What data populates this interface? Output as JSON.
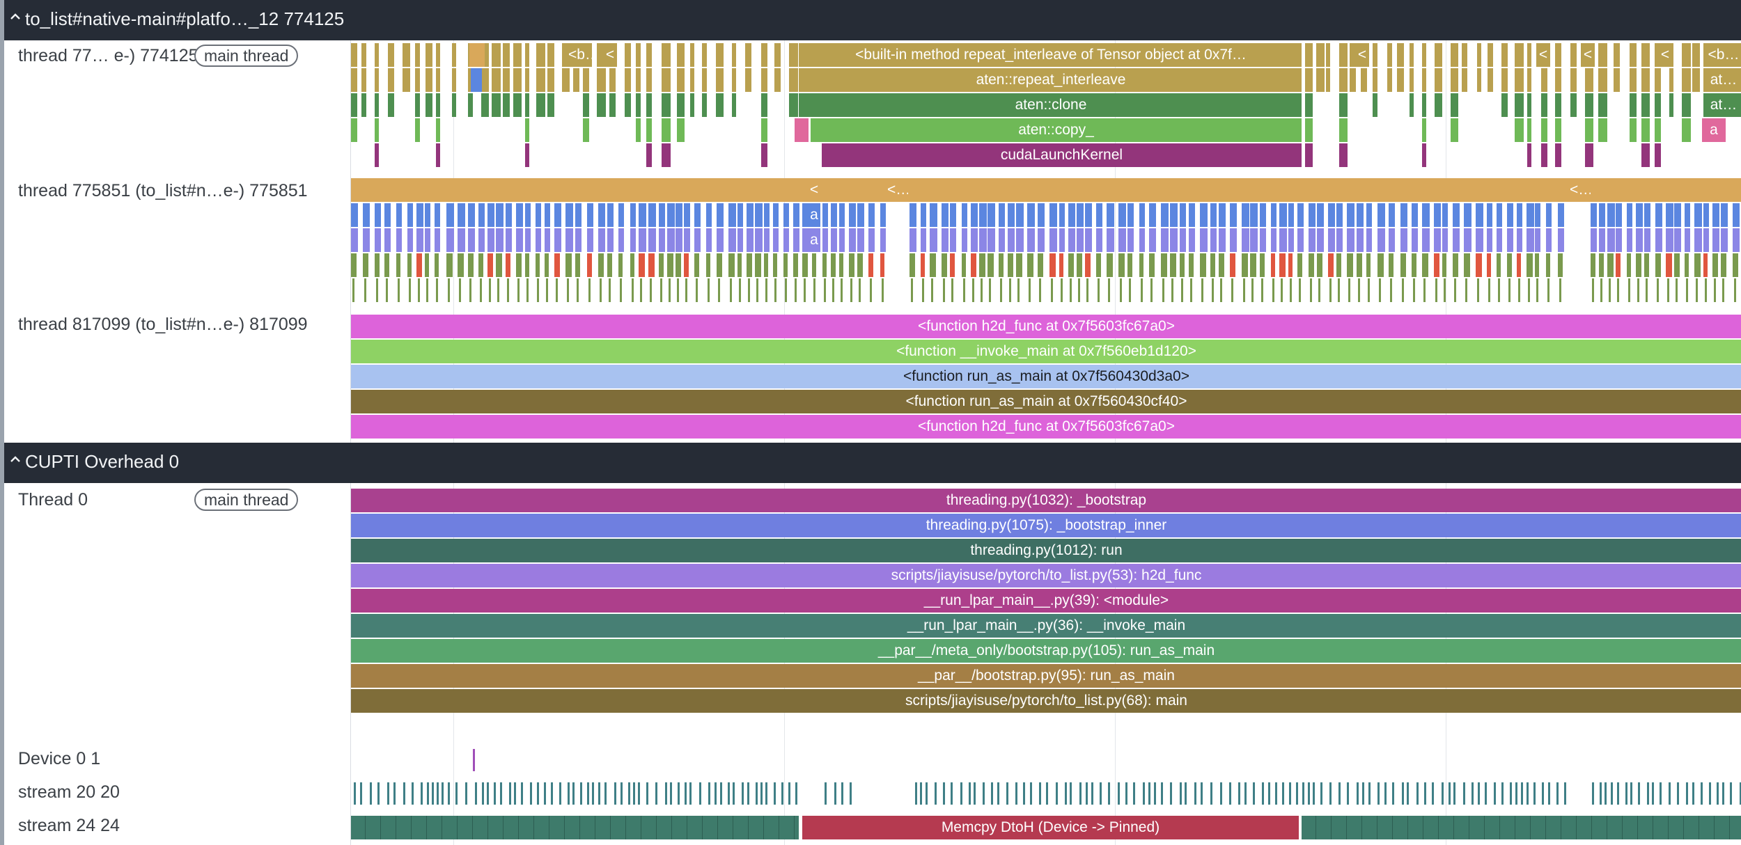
{
  "process_group": {
    "title": "to_list#native-main#platfo…_12 774125",
    "caret_icon": "chevron-up-icon"
  },
  "main_thread_track": {
    "label": "thread 77…  e-) 774125",
    "badge": "main thread",
    "slices": [
      {
        "text": "<b…",
        "color": "#b9a04f"
      },
      {
        "text": "<",
        "color": "#b9a04f"
      },
      {
        "text": "<built-in method repeat_interleave of Tensor object at 0x7f…",
        "color": "#b9a04f"
      },
      {
        "text": "aten::repeat_interleave",
        "color": "#b9a04f"
      },
      {
        "text": "aten::clone",
        "color": "#4e8f50"
      },
      {
        "text": "aten::copy_",
        "color": "#6fb957"
      },
      {
        "text": "cudaLaunchKernel",
        "color": "#93357b"
      },
      {
        "text": "<",
        "color": "#b9a04f"
      },
      {
        "text": "<",
        "color": "#b9a04f"
      },
      {
        "text": "<",
        "color": "#b9a04f"
      },
      {
        "text": "<",
        "color": "#b9a04f"
      },
      {
        "text": "<b…",
        "color": "#b9a04f"
      },
      {
        "text": "at…",
        "color": "#b9a04f"
      },
      {
        "text": "at…",
        "color": "#4e8f50"
      },
      {
        "text": "a",
        "color": "#e0689c"
      }
    ]
  },
  "thread_775851_track": {
    "label": "thread 775851 (to_list#n…e-) 775851",
    "slices": [
      {
        "text": "<",
        "color": "#d9a85a"
      },
      {
        "text": "<…",
        "color": "#d9a85a"
      },
      {
        "text": "<…",
        "color": "#d9a85a"
      },
      {
        "text": "a",
        "color": "#5b86e0"
      },
      {
        "text": "a",
        "color": "#8b86e6"
      }
    ]
  },
  "thread_817099_track": {
    "label": "thread 817099 (to_list#n…e-) 817099",
    "slices": [
      {
        "text": "<function h2d_func at 0x7f5603fc67a0>",
        "color": "#dd63da"
      },
      {
        "text": "<function __invoke_main at 0x7f560eb1d120>",
        "color": "#8ed264"
      },
      {
        "text": "<function run_as_main at 0x7f560430d3a0>",
        "color": "#a8c2f0",
        "dark": true
      },
      {
        "text": "<function run_as_main at 0x7f560430cf40>",
        "color": "#7f6d39"
      },
      {
        "text": "<function h2d_func at 0x7f5603fc67a0>",
        "color": "#dd63da"
      }
    ]
  },
  "cupti_group": {
    "title": "CUPTI Overhead 0",
    "caret_icon": "chevron-up-icon"
  },
  "cupti_thread_track": {
    "label": "Thread 0",
    "badge": "main thread",
    "slices": [
      {
        "text": "threading.py(1032): _bootstrap",
        "color": "#a9418f"
      },
      {
        "text": "threading.py(1075): _bootstrap_inner",
        "color": "#6f7fe0"
      },
      {
        "text": "threading.py(1012): run",
        "color": "#3e6e63"
      },
      {
        "text": "scripts/jiayisuse/pytorch/to_list.py(53): h2d_func",
        "color": "#9b7be0"
      },
      {
        "text": "__run_lpar_main__.py(39): <module>",
        "color": "#ad3f8b"
      },
      {
        "text": "__run_lpar_main__.py(36): __invoke_main",
        "color": "#477f74"
      },
      {
        "text": "__par__/meta_only/bootstrap.py(105): run_as_main",
        "color": "#59a66e"
      },
      {
        "text": "__par__/bootstrap.py(95): run_as_main",
        "color": "#a47f45"
      },
      {
        "text": "scripts/jiayisuse/pytorch/to_list.py(68): main",
        "color": "#7f6d39"
      }
    ]
  },
  "device_track": {
    "label": "Device 0 1",
    "marker_color": "#a04fb8"
  },
  "stream_20_track": {
    "label": "stream 20 20",
    "tick_color": "#3f7f86"
  },
  "stream_24_track": {
    "label": "stream 24 24",
    "slices": [
      {
        "text": "",
        "color": "#3e7b6b"
      },
      {
        "text": "Memcpy DtoH (Device -> Pinned)",
        "color": "#b53a50"
      },
      {
        "text": "",
        "color": "#3e7b6b"
      }
    ]
  }
}
